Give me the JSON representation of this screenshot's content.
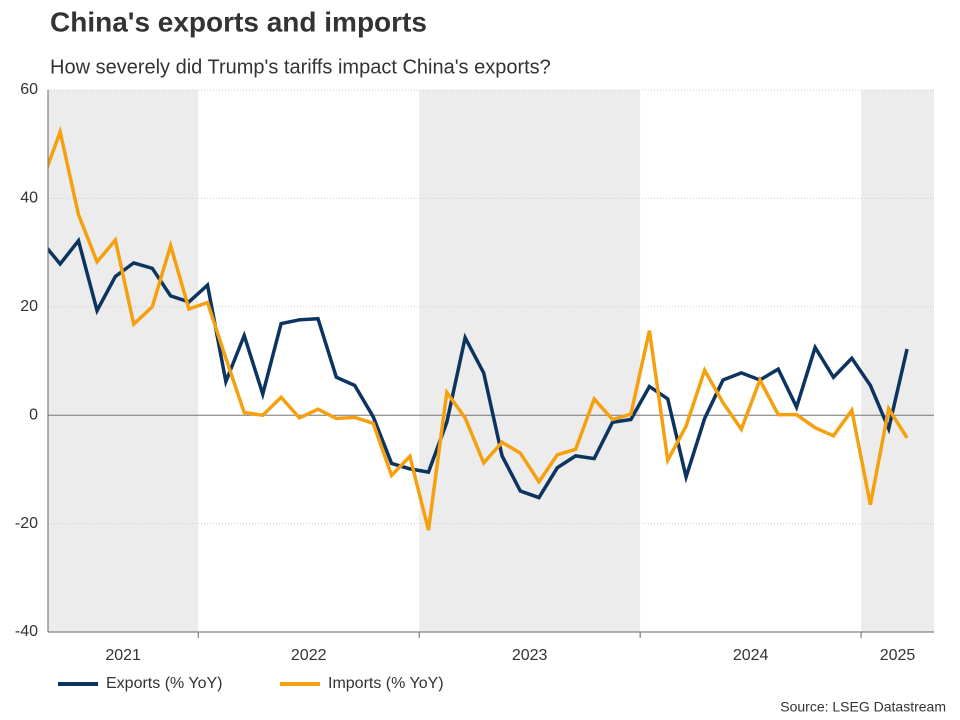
{
  "chart_data": {
    "type": "line",
    "title": "China's exports and imports",
    "subtitle": "How severely did Trump's tariffs impact China's exports?",
    "source": "Source: LSEG Datastream",
    "x": [
      2021.292,
      2021.375,
      2021.458,
      2021.542,
      2021.625,
      2021.708,
      2021.792,
      2021.875,
      2021.958,
      2022.042,
      2022.125,
      2022.208,
      2022.292,
      2022.375,
      2022.458,
      2022.542,
      2022.625,
      2022.708,
      2022.792,
      2022.875,
      2022.958,
      2023.042,
      2023.125,
      2023.208,
      2023.292,
      2023.375,
      2023.458,
      2023.542,
      2023.625,
      2023.708,
      2023.792,
      2023.875,
      2023.958,
      2024.042,
      2024.125,
      2024.208,
      2024.292,
      2024.375,
      2024.458,
      2024.542,
      2024.625,
      2024.708,
      2024.792,
      2024.875,
      2024.958,
      2025.042,
      2025.125,
      2025.208
    ],
    "series": [
      {
        "name": "Exports (% YoY)",
        "color": "#0b3461",
        "values": [
          32,
          27.9,
          32.2,
          19.3,
          25.6,
          28.1,
          27.1,
          22,
          20.9,
          24,
          6.2,
          14.7,
          3.9,
          16.9,
          17.6,
          17.8,
          7.0,
          5.5,
          -0.3,
          -8.9,
          -9.9,
          -10.5,
          -1.3,
          14.3,
          7.8,
          -7.5,
          -14,
          -15.2,
          -9.7,
          -7.5,
          -8.0,
          -1.3,
          -0.8,
          5.3,
          3,
          -11.4,
          -0.6,
          6.5,
          7.8,
          6.5,
          8.5,
          1.5,
          12.5,
          7,
          10.5,
          5.5,
          -2.5,
          12.2
        ]
      },
      {
        "name": "Imports (% YoY)",
        "color": "#f5a00f",
        "values": [
          43,
          52.3,
          37,
          28.3,
          32.3,
          16.8,
          20,
          31.3,
          19.6,
          20.8,
          10.5,
          0.5,
          0,
          3.3,
          -0.5,
          1.1,
          -0.6,
          -0.4,
          -1.5,
          -11.1,
          -7.6,
          -21.2,
          4.2,
          -0.5,
          -8.8,
          -5,
          -7,
          -12.3,
          -7.3,
          -6.3,
          3,
          -0.8,
          0.2,
          15.6,
          -8.3,
          -2,
          8.3,
          2.3,
          -2.6,
          6.5,
          0.1,
          0.1,
          -2.3,
          -3.8,
          0.9,
          -16.5,
          1.2,
          -4.2
        ]
      }
    ],
    "xlim": [
      2021.32,
      2025.33
    ],
    "xticks": [
      2021,
      2022,
      2023,
      2024,
      2025
    ],
    "ylim": [
      -40,
      60
    ],
    "yticks": [
      -40,
      -20,
      0,
      20,
      40,
      60
    ],
    "grid": true,
    "shaded_alternate_years": true
  }
}
